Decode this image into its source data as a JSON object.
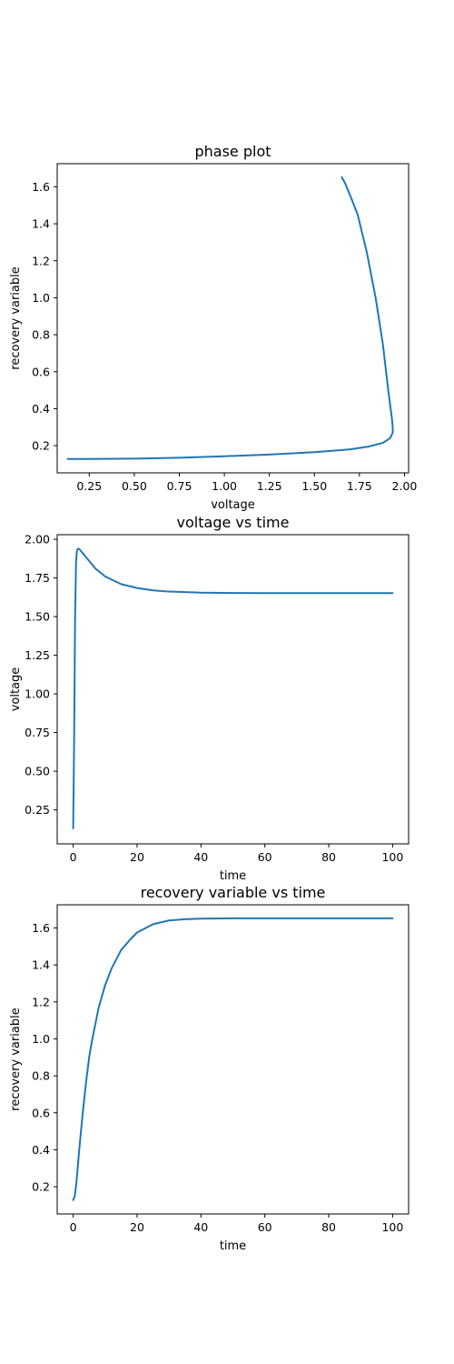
{
  "chart_data": [
    {
      "type": "line",
      "title": "phase plot",
      "xlabel": "voltage",
      "ylabel": "recovery variable",
      "xlim": [
        0.072,
        2.023
      ],
      "ylim": [
        0.053,
        1.725
      ],
      "xticks": [
        "0.25",
        "0.50",
        "0.75",
        "1.00",
        "1.25",
        "1.50",
        "1.75",
        "2.00"
      ],
      "yticks": [
        "0.2",
        "0.4",
        "0.6",
        "0.8",
        "1.0",
        "1.2",
        "1.4",
        "1.6"
      ],
      "grid": false,
      "series": [
        {
          "color": "#1f77b4",
          "x": [
            0.13,
            0.25,
            0.5,
            0.75,
            1.0,
            1.25,
            1.5,
            1.7,
            1.8,
            1.88,
            1.92,
            1.935,
            1.935,
            1.93,
            1.91,
            1.88,
            1.84,
            1.79,
            1.74,
            1.7,
            1.67,
            1.652
          ],
          "y": [
            0.128,
            0.128,
            0.13,
            0.135,
            0.143,
            0.152,
            0.165,
            0.18,
            0.195,
            0.215,
            0.24,
            0.27,
            0.3,
            0.35,
            0.5,
            0.75,
            1.0,
            1.25,
            1.45,
            1.55,
            1.62,
            1.652
          ]
        }
      ]
    },
    {
      "type": "line",
      "title": "voltage vs time",
      "xlabel": "time",
      "ylabel": "voltage",
      "xlim": [
        -5,
        105
      ],
      "ylim": [
        0.03,
        2.03
      ],
      "xticks": [
        "0",
        "20",
        "40",
        "60",
        "80",
        "100"
      ],
      "yticks": [
        "0.25",
        "0.50",
        "0.75",
        "1.00",
        "1.25",
        "1.50",
        "1.75",
        "2.00"
      ],
      "grid": false,
      "series": [
        {
          "color": "#1f77b4",
          "x": [
            0,
            0.3,
            0.6,
            0.9,
            1.2,
            1.6,
            2,
            3,
            5,
            7,
            10,
            15,
            20,
            25,
            30,
            40,
            50,
            60,
            80,
            100
          ],
          "y": [
            0.13,
            0.7,
            1.5,
            1.85,
            1.93,
            1.94,
            1.935,
            1.91,
            1.86,
            1.81,
            1.76,
            1.71,
            1.685,
            1.67,
            1.662,
            1.655,
            1.653,
            1.652,
            1.652,
            1.652
          ]
        }
      ]
    },
    {
      "type": "line",
      "title": "recovery variable vs time",
      "xlabel": "time",
      "ylabel": "recovery variable",
      "xlim": [
        -5,
        105
      ],
      "ylim": [
        0.053,
        1.725
      ],
      "xticks": [
        "0",
        "20",
        "40",
        "60",
        "80",
        "100"
      ],
      "yticks": [
        "0.2",
        "0.4",
        "0.6",
        "0.8",
        "1.0",
        "1.2",
        "1.4",
        "1.6"
      ],
      "grid": false,
      "series": [
        {
          "color": "#1f77b4",
          "x": [
            0,
            0.5,
            1,
            2,
            3,
            4,
            5,
            6,
            8,
            10,
            12,
            15,
            18,
            20,
            25,
            30,
            35,
            40,
            50,
            60,
            80,
            100
          ],
          "y": [
            0.128,
            0.15,
            0.22,
            0.42,
            0.6,
            0.76,
            0.9,
            1.0,
            1.17,
            1.29,
            1.38,
            1.48,
            1.54,
            1.575,
            1.62,
            1.64,
            1.647,
            1.65,
            1.652,
            1.652,
            1.652,
            1.652
          ]
        }
      ]
    }
  ]
}
